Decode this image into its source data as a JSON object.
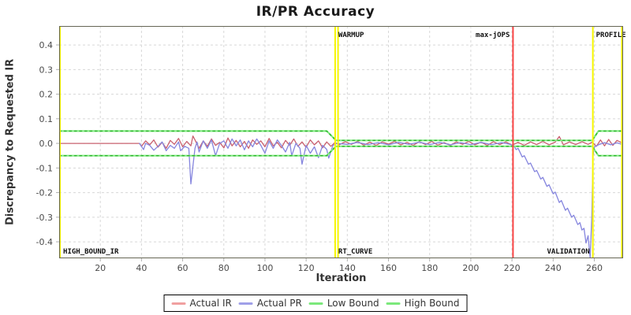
{
  "chart_data": {
    "type": "line",
    "title": "IR/PR Accuracy",
    "axes": {
      "x": {
        "label": "Iteration",
        "min": 0,
        "max": 274,
        "ticks": [
          20,
          40,
          60,
          80,
          100,
          120,
          140,
          160,
          180,
          200,
          220,
          240,
          260
        ]
      },
      "y": {
        "label": "Discrepancy to Requested IR",
        "min": -0.467,
        "max": 0.477,
        "ticks": [
          0.4,
          0.3,
          0.2,
          0.1,
          0.0,
          -0.1,
          -0.2,
          -0.3,
          -0.4
        ]
      }
    },
    "grid": true,
    "legend_position": "bottom",
    "markers": [
      {
        "name": "high-bound-ir",
        "x": 0.4,
        "color": "yellow",
        "bottom_label": "HIGH_BOUND_IR",
        "bottom_align": "after"
      },
      {
        "name": "warmup-end-a",
        "x": 134.1,
        "color": "yellow",
        "top_label": "WARMUP",
        "top_align": "after",
        "bottom_label": "RT_CURVE",
        "bottom_align": "after"
      },
      {
        "name": "warmup-end-b",
        "x": 135.5,
        "color": "yellow"
      },
      {
        "name": "max-jops",
        "x": 220.5,
        "color": "red",
        "top_label": "max-jOPS",
        "top_align": "before"
      },
      {
        "name": "profile",
        "x": 259.3,
        "color": "yellow",
        "top_label": "PROFILE",
        "top_align": "after",
        "bottom_label": "VALIDATION",
        "bottom_align": "before"
      },
      {
        "name": "run-end",
        "x": 273.4,
        "color": "yellow"
      }
    ],
    "series": [
      {
        "name": "Actual IR",
        "color": "#c9606f",
        "points": [
          [
            0,
            0
          ],
          [
            39,
            0
          ],
          [
            40,
            -0.012
          ],
          [
            42,
            0.01
          ],
          [
            44,
            -0.006
          ],
          [
            46,
            0.014
          ],
          [
            48,
            -0.015
          ],
          [
            50,
            0.004
          ],
          [
            52,
            -0.02
          ],
          [
            54,
            0.012
          ],
          [
            56,
            -0.004
          ],
          [
            58,
            0.02
          ],
          [
            60,
            -0.014
          ],
          [
            62,
            0.008
          ],
          [
            64,
            -0.01
          ],
          [
            65,
            0.03
          ],
          [
            66,
            0.014
          ],
          [
            68,
            -0.02
          ],
          [
            70,
            0.01
          ],
          [
            72,
            -0.012
          ],
          [
            74,
            0.018
          ],
          [
            76,
            -0.008
          ],
          [
            78,
            0.004
          ],
          [
            80,
            -0.018
          ],
          [
            82,
            0.022
          ],
          [
            84,
            -0.01
          ],
          [
            86,
            0.012
          ],
          [
            88,
            -0.014
          ],
          [
            90,
            0.008
          ],
          [
            92,
            -0.02
          ],
          [
            94,
            0.014
          ],
          [
            96,
            -0.004
          ],
          [
            98,
            0.01
          ],
          [
            100,
            -0.014
          ],
          [
            102,
            0.02
          ],
          [
            104,
            -0.01
          ],
          [
            106,
            0.004
          ],
          [
            108,
            -0.018
          ],
          [
            110,
            0.012
          ],
          [
            112,
            -0.008
          ],
          [
            114,
            0.018
          ],
          [
            116,
            -0.012
          ],
          [
            118,
            0.006
          ],
          [
            120,
            -0.016
          ],
          [
            122,
            0.014
          ],
          [
            124,
            -0.006
          ],
          [
            126,
            0.01
          ],
          [
            128,
            -0.018
          ],
          [
            130,
            0.006
          ],
          [
            132,
            -0.012
          ],
          [
            134,
            0.004
          ],
          [
            136,
            -0.006
          ],
          [
            139,
            0.007
          ],
          [
            142,
            -0.004
          ],
          [
            145,
            0.008
          ],
          [
            148,
            -0.007
          ],
          [
            151,
            0.005
          ],
          [
            154,
            -0.008
          ],
          [
            157,
            0.006
          ],
          [
            160,
            -0.003
          ],
          [
            163,
            0.008
          ],
          [
            166,
            -0.006
          ],
          [
            169,
            0.004
          ],
          [
            172,
            -0.008
          ],
          [
            175,
            0.007
          ],
          [
            178,
            -0.005
          ],
          [
            181,
            0.008
          ],
          [
            184,
            -0.007
          ],
          [
            187,
            0.003
          ],
          [
            190,
            -0.008
          ],
          [
            193,
            0.006
          ],
          [
            196,
            -0.004
          ],
          [
            199,
            0.008
          ],
          [
            202,
            -0.006
          ],
          [
            205,
            0.005
          ],
          [
            208,
            -0.008
          ],
          [
            211,
            0.007
          ],
          [
            214,
            -0.005
          ],
          [
            217,
            0.006
          ],
          [
            220,
            -0.007
          ],
          [
            223,
            0.004
          ],
          [
            226,
            -0.008
          ],
          [
            229,
            0.006
          ],
          [
            232,
            -0.005
          ],
          [
            235,
            0.008
          ],
          [
            238,
            -0.006
          ],
          [
            241,
            0.005
          ],
          [
            243,
            0.028
          ],
          [
            245,
            -0.006
          ],
          [
            248,
            0.006
          ],
          [
            251,
            -0.005
          ],
          [
            254,
            0.007
          ],
          [
            257,
            -0.004
          ],
          [
            259,
            0.005
          ],
          [
            261,
            -0.012
          ],
          [
            263,
            0.014
          ],
          [
            265,
            -0.01
          ],
          [
            267,
            0.016
          ],
          [
            269,
            -0.008
          ],
          [
            271,
            0.012
          ],
          [
            273.5,
            0.002
          ]
        ]
      },
      {
        "name": "Actual PR",
        "color": "#8585de",
        "points": [
          [
            39,
            0
          ],
          [
            41,
            -0.025
          ],
          [
            42,
            0
          ],
          [
            44,
            -0.008
          ],
          [
            46,
            -0.028
          ],
          [
            48,
            -0.012
          ],
          [
            50,
            0.006
          ],
          [
            52,
            -0.03
          ],
          [
            54,
            -0.008
          ],
          [
            56,
            -0.02
          ],
          [
            58,
            0.006
          ],
          [
            59,
            -0.03
          ],
          [
            61,
            -0.012
          ],
          [
            63,
            -0.02
          ],
          [
            64,
            -0.165
          ],
          [
            66,
            -0.02
          ],
          [
            67,
            0.006
          ],
          [
            68,
            -0.035
          ],
          [
            70,
            0.01
          ],
          [
            72,
            -0.02
          ],
          [
            74,
            0.014
          ],
          [
            76,
            -0.05
          ],
          [
            78,
            0
          ],
          [
            80,
            0.01
          ],
          [
            82,
            -0.02
          ],
          [
            84,
            0.018
          ],
          [
            86,
            -0.01
          ],
          [
            88,
            0.014
          ],
          [
            90,
            -0.026
          ],
          [
            92,
            0.01
          ],
          [
            94,
            -0.014
          ],
          [
            96,
            0.018
          ],
          [
            98,
            -0.008
          ],
          [
            100,
            -0.04
          ],
          [
            102,
            0.01
          ],
          [
            104,
            -0.02
          ],
          [
            106,
            0.014
          ],
          [
            108,
            -0.008
          ],
          [
            110,
            -0.035
          ],
          [
            112,
            0.004
          ],
          [
            113,
            -0.05
          ],
          [
            115,
            0
          ],
          [
            117,
            -0.02
          ],
          [
            118,
            -0.085
          ],
          [
            120,
            -0.008
          ],
          [
            122,
            -0.04
          ],
          [
            124,
            -0.014
          ],
          [
            126,
            -0.058
          ],
          [
            128,
            -0.008
          ],
          [
            130,
            -0.024
          ],
          [
            131,
            -0.06
          ],
          [
            133,
            -0.008
          ],
          [
            135,
            0
          ],
          [
            140,
            -0.004
          ],
          [
            145,
            0.004
          ],
          [
            150,
            -0.005
          ],
          [
            155,
            0.003
          ],
          [
            160,
            -0.006
          ],
          [
            165,
            0.004
          ],
          [
            170,
            -0.004
          ],
          [
            175,
            0.005
          ],
          [
            180,
            -0.005
          ],
          [
            185,
            0.004
          ],
          [
            190,
            -0.006
          ],
          [
            195,
            0.003
          ],
          [
            200,
            -0.005
          ],
          [
            205,
            0.004
          ],
          [
            210,
            -0.005
          ],
          [
            215,
            0.003
          ],
          [
            219,
            -0.004
          ],
          [
            221,
            -0.01
          ],
          [
            222,
            -0.025
          ],
          [
            223,
            -0.02
          ],
          [
            225,
            -0.055
          ],
          [
            226,
            -0.05
          ],
          [
            228,
            -0.085
          ],
          [
            229,
            -0.08
          ],
          [
            231,
            -0.115
          ],
          [
            232,
            -0.11
          ],
          [
            234,
            -0.145
          ],
          [
            235,
            -0.138
          ],
          [
            237,
            -0.175
          ],
          [
            238,
            -0.168
          ],
          [
            240,
            -0.205
          ],
          [
            241,
            -0.198
          ],
          [
            243,
            -0.24
          ],
          [
            244,
            -0.232
          ],
          [
            246,
            -0.272
          ],
          [
            247,
            -0.263
          ],
          [
            249,
            -0.3
          ],
          [
            250,
            -0.292
          ],
          [
            252,
            -0.33
          ],
          [
            253,
            -0.322
          ],
          [
            254,
            -0.352
          ],
          [
            255,
            -0.345
          ],
          [
            256,
            -0.405
          ],
          [
            257,
            -0.375
          ],
          [
            258,
            -0.465
          ],
          [
            258.8,
            -0.3
          ],
          [
            259.4,
            -0.05
          ],
          [
            260,
            -0.015
          ],
          [
            262,
            -0.006
          ],
          [
            265,
            0.003
          ],
          [
            268,
            -0.006
          ],
          [
            271,
            0.002
          ],
          [
            273.5,
            -0.004
          ]
        ]
      },
      {
        "name": "Low Bound",
        "color": "#86ec86",
        "bound": true,
        "points": [
          [
            0,
            -0.05
          ],
          [
            130,
            -0.05
          ],
          [
            134.5,
            -0.012
          ],
          [
            259,
            -0.012
          ],
          [
            262,
            -0.05
          ],
          [
            274,
            -0.05
          ]
        ]
      },
      {
        "name": "High Bound",
        "color": "#86ec86",
        "bound": true,
        "points": [
          [
            0,
            0.05
          ],
          [
            130,
            0.05
          ],
          [
            134.5,
            0.012
          ],
          [
            259,
            0.012
          ],
          [
            262,
            0.05
          ],
          [
            274,
            0.05
          ]
        ]
      }
    ],
    "legend": {
      "items": [
        {
          "label": "Actual IR",
          "color": "#f0a0a0"
        },
        {
          "label": "Actual PR",
          "color": "#a0a0e8"
        },
        {
          "label": "Low Bound",
          "color": "#7be87b"
        },
        {
          "label": "High Bound",
          "color": "#7be87b"
        }
      ]
    }
  },
  "colors": {
    "marker_yellow": "#f6f600",
    "marker_red": "#f94545",
    "bound_dash": "#2db42d",
    "grid": "#d8d8d8",
    "tick": "#b0b0b0",
    "tick_label": "#4a4a4a",
    "plot_border": "#666655",
    "marker_label": "#111111"
  }
}
